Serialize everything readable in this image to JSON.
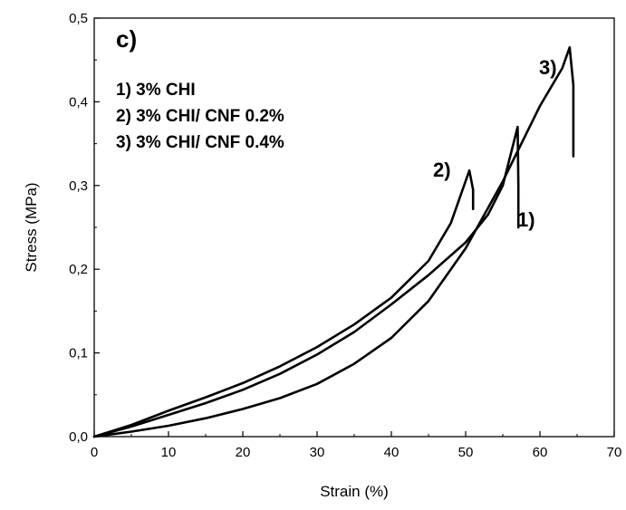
{
  "chart_data": {
    "type": "line",
    "panel_label": "c)",
    "xlabel": "Strain (%)",
    "ylabel": "Stress (MPa)",
    "xlim": [
      0,
      70
    ],
    "ylim": [
      0,
      0.5
    ],
    "x_ticks": [
      0,
      10,
      20,
      30,
      40,
      50,
      60,
      70
    ],
    "y_ticks": [
      0.0,
      0.1,
      0.2,
      0.3,
      0.4,
      0.5
    ],
    "x_tick_labels": [
      "0",
      "10",
      "20",
      "30",
      "40",
      "50",
      "60",
      "70"
    ],
    "y_tick_labels": [
      "0,0",
      "0,1",
      "0,2",
      "0,3",
      "0,4",
      "0,5"
    ],
    "grid": false,
    "line_color": "#000000",
    "legend_lines": [
      "1) 3% CHI",
      "2) 3% CHI/ CNF 0.2%",
      "3) 3% CHI/ CNF 0.4%"
    ],
    "series": [
      {
        "label": "1)",
        "x": [
          0,
          5,
          10,
          15,
          20,
          25,
          30,
          35,
          40,
          45,
          50,
          53,
          55,
          57,
          57.1,
          57.1
        ],
        "y": [
          0,
          0.012,
          0.026,
          0.04,
          0.056,
          0.075,
          0.098,
          0.125,
          0.158,
          0.193,
          0.232,
          0.265,
          0.3,
          0.37,
          0.3,
          0.25
        ]
      },
      {
        "label": "2)",
        "x": [
          0,
          5,
          10,
          15,
          20,
          25,
          30,
          35,
          40,
          45,
          48,
          50.5,
          51,
          51
        ],
        "y": [
          0,
          0.014,
          0.031,
          0.047,
          0.064,
          0.084,
          0.107,
          0.134,
          0.166,
          0.21,
          0.255,
          0.318,
          0.295,
          0.272
        ]
      },
      {
        "label": "3)",
        "x": [
          0,
          5,
          10,
          15,
          20,
          25,
          30,
          35,
          40,
          45,
          50,
          55,
          60,
          63,
          64,
          64.5,
          64.5
        ],
        "y": [
          0,
          0.006,
          0.013,
          0.022,
          0.033,
          0.046,
          0.063,
          0.087,
          0.118,
          0.162,
          0.225,
          0.305,
          0.395,
          0.44,
          0.465,
          0.42,
          0.335
        ]
      }
    ]
  }
}
